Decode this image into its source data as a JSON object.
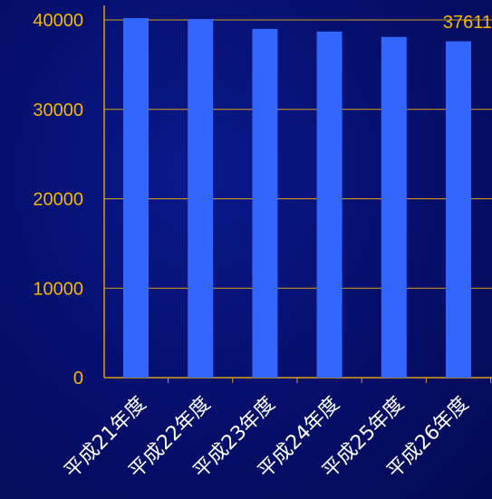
{
  "chart_data": {
    "type": "bar",
    "title": "",
    "xlabel": "",
    "ylabel": "",
    "categories": [
      "平成21年度",
      "平成22年度",
      "平成23年度",
      "平成24年度",
      "平成25年度",
      "平成26年度"
    ],
    "values": [
      40200,
      40100,
      39000,
      38700,
      38100,
      37611
    ],
    "ylim": [
      0,
      40000
    ],
    "yticks": [
      0,
      10000,
      20000,
      30000,
      40000
    ],
    "data_labels": [
      {
        "index": 5,
        "text": "37611"
      }
    ],
    "grid": true,
    "legend": "none",
    "colors": {
      "bar": "#3366ff",
      "gridline": "#d4a017",
      "axis": "#d4a017",
      "tick_text": "#f5b800",
      "category_text": "#ffffff"
    }
  }
}
